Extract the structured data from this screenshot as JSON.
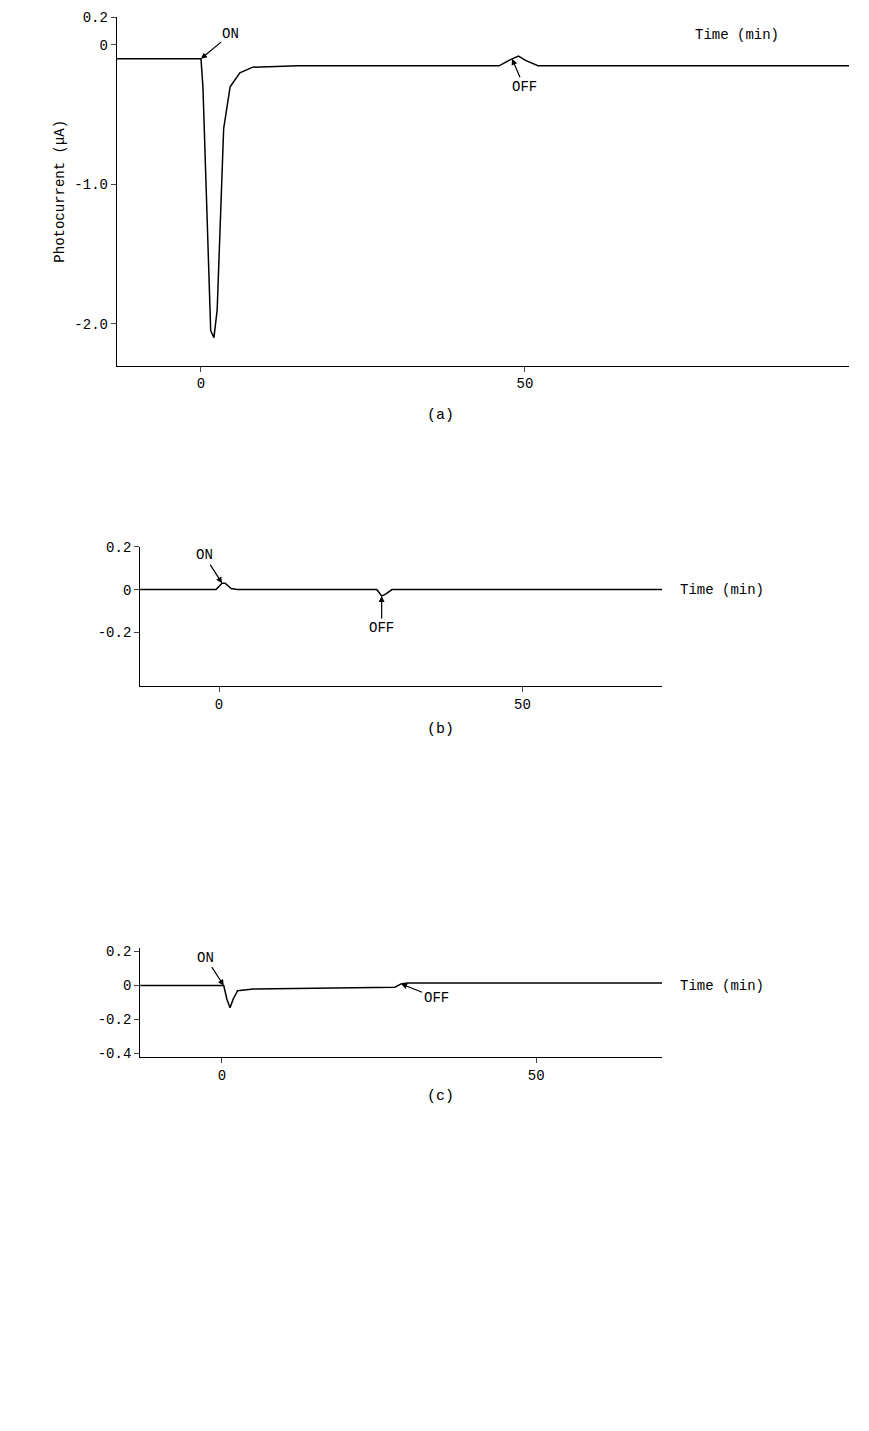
{
  "chart_data": [
    {
      "type": "line",
      "title": "(a)",
      "y_label": "Photocurrent (μA)",
      "x_label": "Time (min)",
      "color": "#000000",
      "grid": false,
      "xlim": [
        -13,
        100
      ],
      "xticks": [
        0,
        50
      ],
      "ylim": [
        -2.3,
        0.2
      ],
      "yticks": [
        0.2,
        0,
        {
          "value": -1.0,
          "label": "-1.0"
        },
        {
          "value": -2.0,
          "label": "-2.0"
        }
      ],
      "x": [
        -13,
        0,
        0.3,
        1.5,
        2,
        2.5,
        3.5,
        4.5,
        6,
        8,
        15,
        46,
        48,
        49,
        50,
        52,
        100
      ],
      "values": [
        -0.1,
        -0.1,
        -0.3,
        -2.05,
        -2.1,
        -1.9,
        -0.6,
        -0.3,
        -0.2,
        -0.16,
        -0.15,
        -0.15,
        -0.1,
        -0.08,
        -0.11,
        -0.15,
        -0.15
      ],
      "annotations": [
        {
          "text": "ON",
          "x": 0
        },
        {
          "text": "OFF",
          "x": 48
        }
      ]
    },
    {
      "type": "line",
      "title": "(b)",
      "x_label": "Time (min)",
      "color": "#000000",
      "grid": false,
      "xlim": [
        -13,
        73
      ],
      "xticks": [
        0,
        50
      ],
      "ylim": [
        -0.45,
        0.2
      ],
      "yticks": [
        0.2,
        0,
        -0.2
      ],
      "x": [
        -13,
        -0.5,
        0.5,
        1,
        2,
        3,
        26,
        26.8,
        27.5,
        28.5,
        73
      ],
      "values": [
        0,
        0,
        0.03,
        0.03,
        0.005,
        0,
        0,
        -0.03,
        -0.02,
        0,
        0
      ],
      "annotations": [
        {
          "text": "ON",
          "x": 0.5
        },
        {
          "text": "OFF",
          "x": 26.8
        }
      ]
    },
    {
      "type": "line",
      "title": "(c)",
      "x_label": "Time (min)",
      "color": "#000000",
      "grid": false,
      "xlim": [
        -13,
        70
      ],
      "xticks": [
        0,
        50
      ],
      "ylim": [
        -0.42,
        0.22
      ],
      "yticks": [
        0.2,
        0,
        -0.2,
        -0.4
      ],
      "x": [
        -13,
        0.3,
        0.8,
        1.3,
        1.8,
        2.5,
        5,
        15,
        27.5,
        28.5,
        29.5,
        70
      ],
      "values": [
        0,
        0,
        -0.08,
        -0.13,
        -0.08,
        -0.03,
        -0.02,
        -0.015,
        -0.01,
        0.01,
        0.015,
        0.015
      ],
      "annotations": [
        {
          "text": "ON",
          "x": 0.3
        },
        {
          "text": "OFF",
          "x": 28.5
        }
      ]
    }
  ]
}
